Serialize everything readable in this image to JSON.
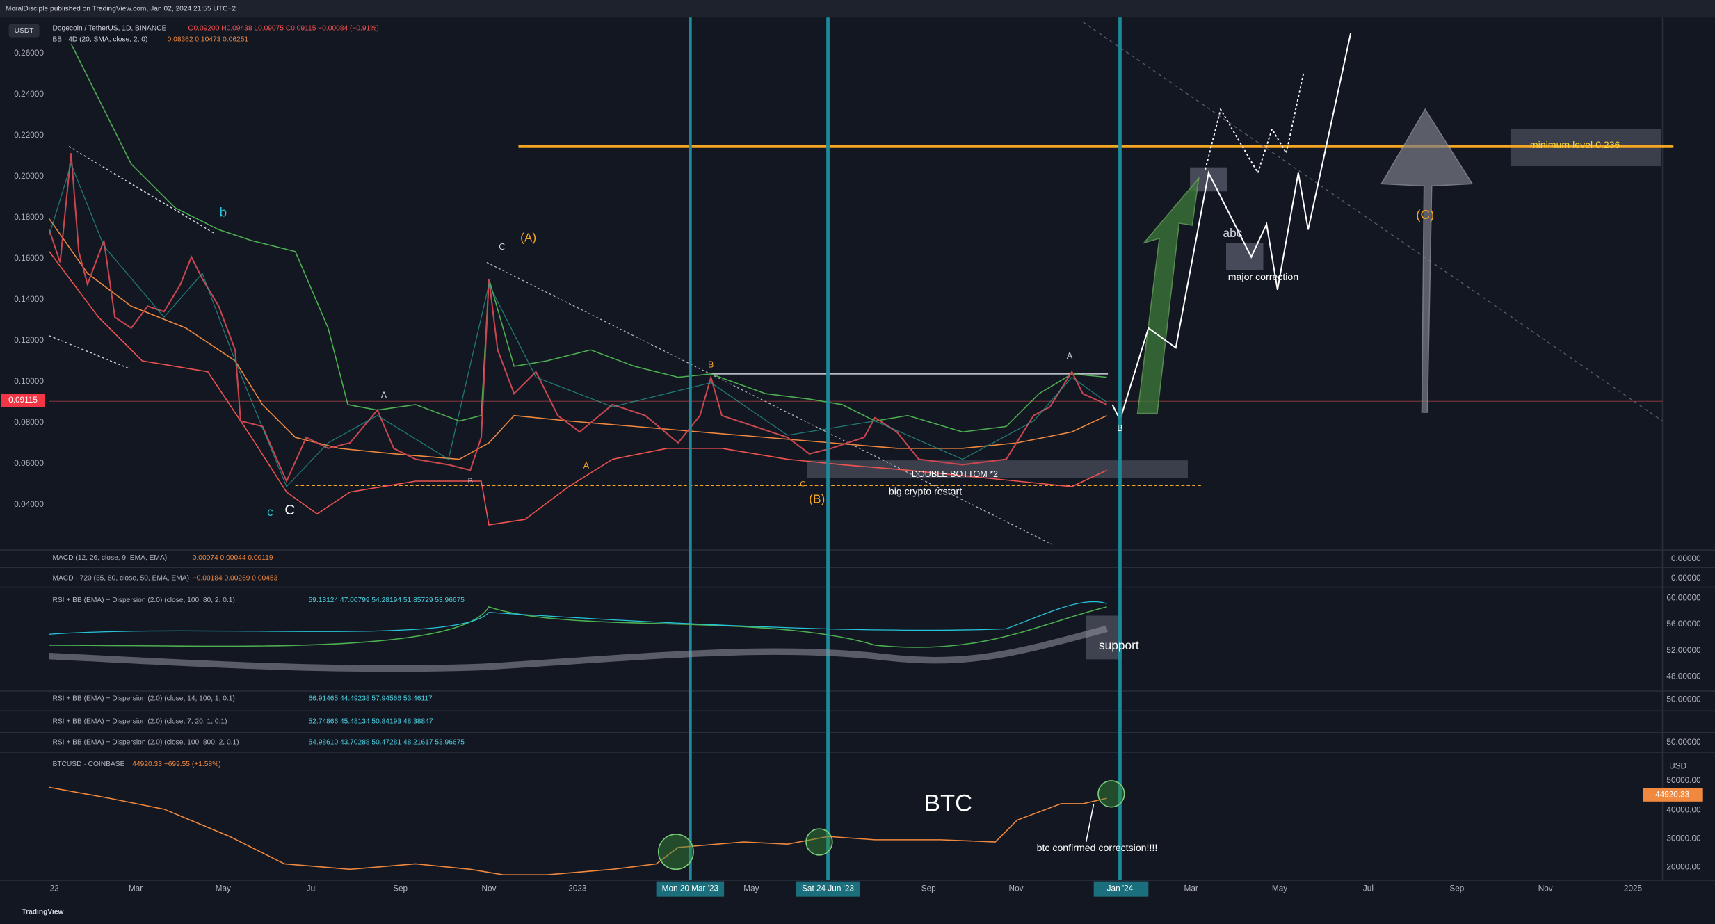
{
  "header": {
    "publisher": "MoralDisciple published on TradingView.com, Jan 02, 2024 21:55 UTC+2",
    "currency": "USDT",
    "symbol": "Dogecoin / TetherUS, 1D, BINANCE",
    "ohlc": "O0.09200 H0.09438 L0.09075 C0.09115 −0.00084 (−0.91%)",
    "bb": "BB · 4D (20, SMA, close, 2, 0)",
    "bb_values": "0.08362  0.10473  0.06251"
  },
  "price_axis": [
    "0.26000",
    "0.24000",
    "0.22000",
    "0.20000",
    "0.18000",
    "0.16000",
    "0.14000",
    "0.12000",
    "0.10000",
    "0.08000",
    "0.06000",
    "0.04000"
  ],
  "last_price": "0.09115",
  "annotations": [
    "b",
    "C",
    "(A)",
    "c",
    "C",
    "A",
    "B",
    "A",
    "B",
    "C",
    "(B)",
    "DOUBLE BOTTOM *2",
    "big crypto restart",
    "abc",
    "major correction",
    "(C)",
    "minimum level 0.236",
    "A",
    "B",
    "support",
    "BTC",
    "btc confirmed correctsion!!!!"
  ],
  "indicators": [
    {
      "label": "MACD (12, 26, close, 9, EMA, EMA)",
      "values": "0.00074  0.00044  0.00119"
    },
    {
      "label": "MACD · 720 (35, 80, close, 50, EMA, EMA)",
      "values": "−0.00184  0.00269  0.00453"
    },
    {
      "label": "RSI + BB (EMA) + Dispersion (2.0) (close, 100, 80, 2, 0.1)",
      "values": "59.13124  47.00799  54.28194  51.85729  53.96675"
    },
    {
      "label": "RSI + BB (EMA) + Dispersion (2.0) (close, 14, 100, 1, 0.1)",
      "values": "66.91465  44.49238  57.94566  53.46117"
    },
    {
      "label": "RSI + BB (EMA) + Dispersion (2.0) (close, 7, 20, 1, 0.1)",
      "values": "52.74866  45.48134  50.84193  48.38847"
    },
    {
      "label": "RSI + BB (EMA) + Dispersion (2.0) (close, 100, 800, 2, 0.1)",
      "values": "54.98610  43.70288  50.47281  48.21617  53.96675"
    }
  ],
  "indicator_axis": [
    "0.00000",
    "0.00000",
    "60.00000",
    "56.00000",
    "52.00000",
    "48.00000",
    "50.00000",
    "50.00000"
  ],
  "btc": {
    "label": "BTCUSD · COINBASE",
    "quote": "44920.33  +699.55 (+1.58%)",
    "currency": "USD",
    "axis": [
      "50000.00",
      "40000.00",
      "30000.00",
      "20000.00"
    ],
    "last": "44920.33"
  },
  "time_axis": [
    "'22",
    "Mar",
    "May",
    "Jul",
    "Sep",
    "Nov",
    "2023",
    "May",
    "Sep",
    "Nov",
    "Mar",
    "May",
    "Jul",
    "Sep",
    "Nov",
    "2025"
  ],
  "time_markers": [
    "Mon 20 Mar '23",
    "Sat 24 Jun '23",
    "Jan '24"
  ],
  "footer": "TradingView"
}
